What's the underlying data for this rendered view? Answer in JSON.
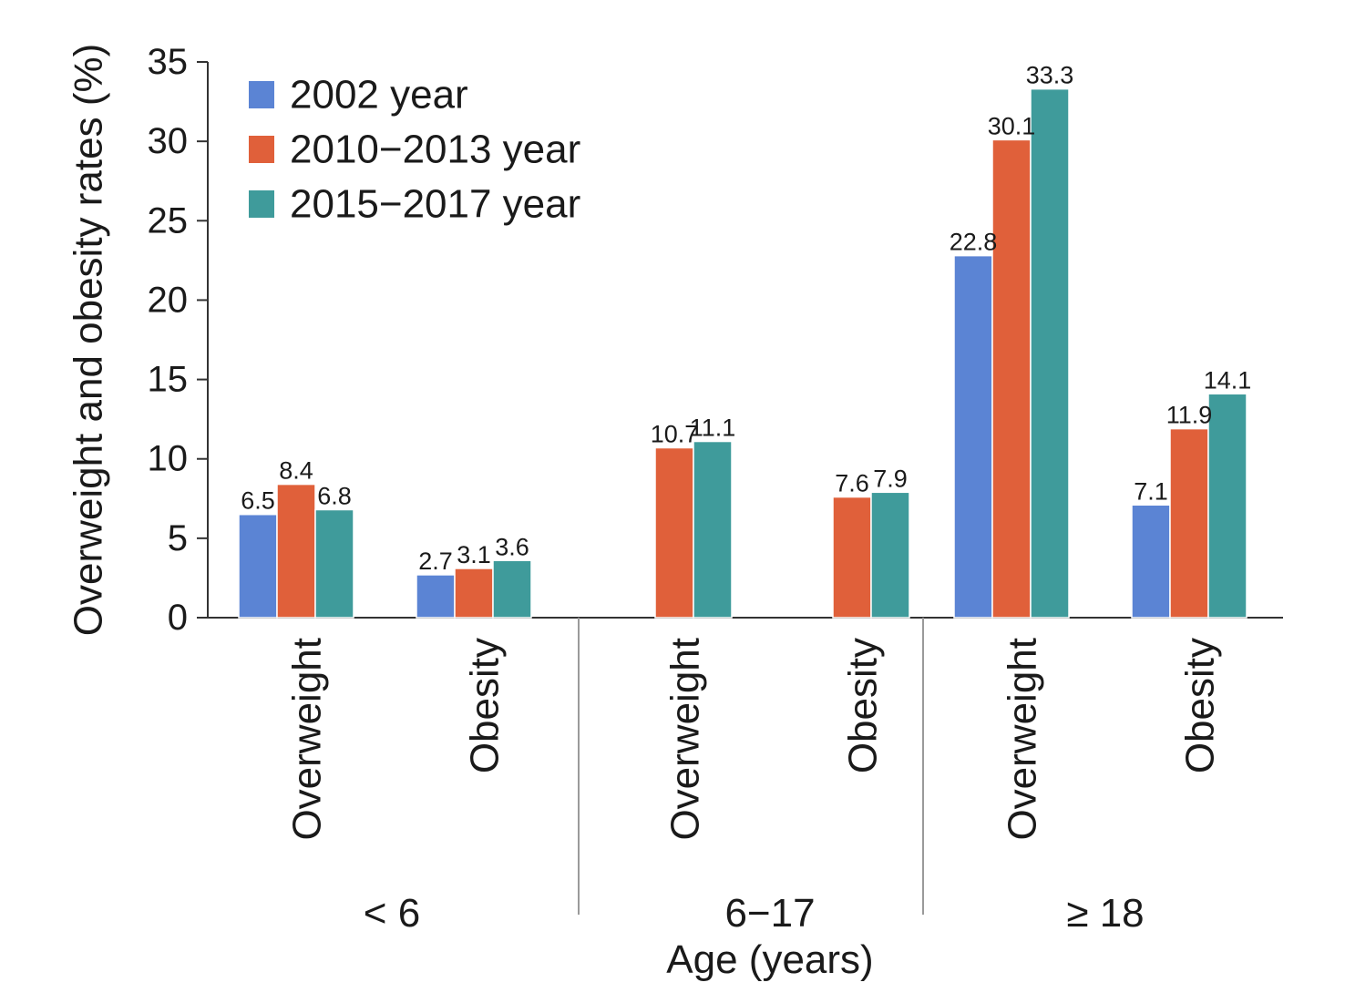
{
  "chart_data": {
    "type": "bar",
    "ylabel": "Overweight and obesity rates (%)",
    "xlabel": "Age (years)",
    "ylim": [
      0,
      35
    ],
    "yticks": [
      0,
      5,
      10,
      15,
      20,
      25,
      30,
      35
    ],
    "grid": false,
    "legend_position": "top-left",
    "groups": [
      {
        "label": "< 6",
        "categories": [
          "Overweight",
          "Obesity"
        ]
      },
      {
        "label": "6−17",
        "categories": [
          "Overweight",
          "Obesity"
        ]
      },
      {
        "label": "≥ 18",
        "categories": [
          "Overweight",
          "Obesity"
        ]
      }
    ],
    "categories": [
      "Overweight",
      "Obesity",
      "Overweight",
      "Obesity",
      "Overweight",
      "Obesity"
    ],
    "series": [
      {
        "name": "2002 year",
        "color": "#5b84d4",
        "values": [
          6.5,
          2.7,
          null,
          null,
          22.8,
          7.1
        ]
      },
      {
        "name": "2010−2013 year",
        "color": "#e0603a",
        "values": [
          8.4,
          3.1,
          10.7,
          7.6,
          30.1,
          11.9
        ]
      },
      {
        "name": "2015−2017 year",
        "color": "#3f9b9b",
        "values": [
          6.8,
          3.6,
          11.1,
          7.9,
          33.3,
          14.1
        ]
      }
    ]
  }
}
